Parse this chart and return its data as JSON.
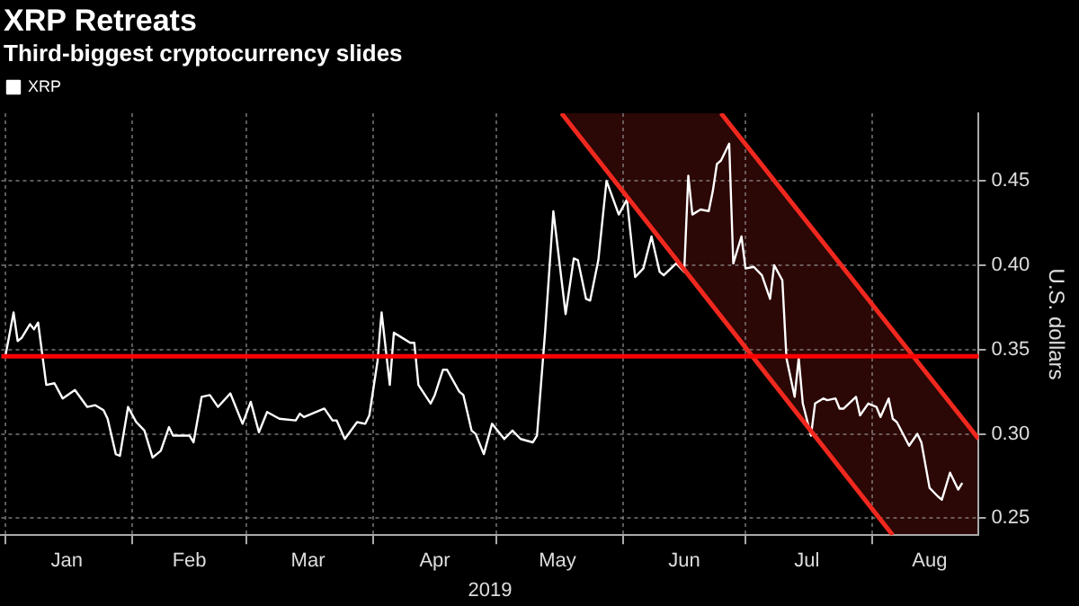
{
  "chart_data": {
    "type": "line",
    "title": "XRP Retreats",
    "subtitle": "Third-biggest cryptocurrency slides",
    "xlabel": "2019",
    "ylabel": "U.S. dollars",
    "xlim": [
      "2018-12-31",
      "2019-08-27"
    ],
    "xticks": [
      {
        "value": "2019-01-01",
        "label": null
      },
      {
        "value": "2019-01-16",
        "label": "Jan"
      },
      {
        "value": "2019-02-01",
        "label": null
      },
      {
        "value": "2019-02-15",
        "label": "Feb"
      },
      {
        "value": "2019-03-01",
        "label": null
      },
      {
        "value": "2019-03-16",
        "label": "Mar"
      },
      {
        "value": "2019-04-01",
        "label": null
      },
      {
        "value": "2019-04-16",
        "label": "Apr"
      },
      {
        "value": "2019-05-01",
        "label": null
      },
      {
        "value": "2019-05-16",
        "label": "May"
      },
      {
        "value": "2019-06-01",
        "label": null
      },
      {
        "value": "2019-06-16",
        "label": "Jun"
      },
      {
        "value": "2019-07-01",
        "label": null
      },
      {
        "value": "2019-07-16",
        "label": "Jul"
      },
      {
        "value": "2019-08-01",
        "label": null
      },
      {
        "value": "2019-08-15",
        "label": "Aug"
      }
    ],
    "ylim": [
      0.24,
      0.49
    ],
    "yticks": [
      {
        "value": 0.25,
        "label": "0.25"
      },
      {
        "value": 0.3,
        "label": "0.30"
      },
      {
        "value": 0.35,
        "label": "0.35"
      },
      {
        "value": 0.4,
        "label": "0.40"
      },
      {
        "value": 0.45,
        "label": "0.45"
      }
    ],
    "grid": true,
    "legend": "top left",
    "ref_lines": [
      {
        "axis": "y",
        "value": 0.346,
        "color": "#ff0000"
      }
    ],
    "series": [
      {
        "color": "#f0281e",
        "x": [
          "2019-05-17",
          "2019-08-06"
        ],
        "values": [
          0.49,
          0.24
        ]
      },
      {
        "color": "#f0281e",
        "x": [
          "2019-06-25",
          "2019-08-27"
        ],
        "values": [
          0.49,
          0.297
        ]
      },
      {
        "name": "XRP",
        "color": "#ffffff",
        "x": [
          "2019-01-01",
          "2019-01-03",
          "2019-01-04",
          "2019-01-05",
          "2019-01-07",
          "2019-01-08",
          "2019-01-09",
          "2019-01-11",
          "2019-01-13",
          "2019-01-15",
          "2019-01-18",
          "2019-01-21",
          "2019-01-23",
          "2019-01-25",
          "2019-01-26",
          "2019-01-28",
          "2019-01-29",
          "2019-01-31",
          "2019-02-02",
          "2019-02-04",
          "2019-02-06",
          "2019-02-08",
          "2019-02-10",
          "2019-02-11",
          "2019-02-13",
          "2019-02-15",
          "2019-02-16",
          "2019-02-18",
          "2019-02-20",
          "2019-02-22",
          "2019-02-25",
          "2019-02-28",
          "2019-03-02",
          "2019-03-04",
          "2019-03-06",
          "2019-03-09",
          "2019-03-13",
          "2019-03-14",
          "2019-03-15",
          "2019-03-18",
          "2019-03-20",
          "2019-03-22",
          "2019-03-23",
          "2019-03-25",
          "2019-03-28",
          "2019-03-30",
          "2019-03-31",
          "2019-04-02",
          "2019-04-03",
          "2019-04-05",
          "2019-04-06",
          "2019-04-08",
          "2019-04-10",
          "2019-04-11",
          "2019-04-12",
          "2019-04-15",
          "2019-04-16",
          "2019-04-18",
          "2019-04-19",
          "2019-04-22",
          "2019-04-23",
          "2019-04-25",
          "2019-04-26",
          "2019-04-28",
          "2019-04-30",
          "2019-05-03",
          "2019-05-05",
          "2019-05-07",
          "2019-05-10",
          "2019-05-11",
          "2019-05-13",
          "2019-05-15",
          "2019-05-18",
          "2019-05-20",
          "2019-05-21",
          "2019-05-23",
          "2019-05-24",
          "2019-05-26",
          "2019-05-28",
          "2019-05-31",
          "2019-06-02",
          "2019-06-04",
          "2019-06-06",
          "2019-06-08",
          "2019-06-10",
          "2019-06-11",
          "2019-06-14",
          "2019-06-16",
          "2019-06-17",
          "2019-06-18",
          "2019-06-20",
          "2019-06-22",
          "2019-06-23",
          "2019-06-24",
          "2019-06-25",
          "2019-06-27",
          "2019-06-28",
          "2019-06-30",
          "2019-07-01",
          "2019-07-03",
          "2019-07-05",
          "2019-07-07",
          "2019-07-08",
          "2019-07-10",
          "2019-07-11",
          "2019-07-13",
          "2019-07-14",
          "2019-07-15",
          "2019-07-17",
          "2019-07-18",
          "2019-07-20",
          "2019-07-21",
          "2019-07-23",
          "2019-07-24",
          "2019-07-25",
          "2019-07-28",
          "2019-07-29",
          "2019-07-31",
          "2019-08-02",
          "2019-08-03",
          "2019-08-05",
          "2019-08-06",
          "2019-08-07",
          "2019-08-10",
          "2019-08-12",
          "2019-08-13",
          "2019-08-15",
          "2019-08-17",
          "2019-08-18",
          "2019-08-20",
          "2019-08-22",
          "2019-08-23"
        ],
        "values": [
          0.346,
          0.372,
          0.355,
          0.357,
          0.365,
          0.362,
          0.366,
          0.329,
          0.33,
          0.321,
          0.326,
          0.316,
          0.317,
          0.314,
          0.309,
          0.288,
          0.287,
          0.316,
          0.307,
          0.302,
          0.286,
          0.29,
          0.304,
          0.299,
          0.299,
          0.299,
          0.295,
          0.322,
          0.323,
          0.316,
          0.324,
          0.306,
          0.319,
          0.301,
          0.313,
          0.309,
          0.308,
          0.312,
          0.31,
          0.313,
          0.315,
          0.308,
          0.308,
          0.297,
          0.307,
          0.306,
          0.311,
          0.343,
          0.372,
          0.329,
          0.36,
          0.357,
          0.354,
          0.354,
          0.329,
          0.318,
          0.323,
          0.338,
          0.338,
          0.325,
          0.323,
          0.302,
          0.3,
          0.288,
          0.306,
          0.297,
          0.302,
          0.297,
          0.295,
          0.299,
          0.361,
          0.432,
          0.371,
          0.404,
          0.403,
          0.38,
          0.379,
          0.403,
          0.45,
          0.43,
          0.439,
          0.393,
          0.398,
          0.417,
          0.396,
          0.394,
          0.401,
          0.396,
          0.453,
          0.43,
          0.433,
          0.432,
          0.444,
          0.46,
          0.462,
          0.472,
          0.401,
          0.417,
          0.398,
          0.399,
          0.394,
          0.38,
          0.4,
          0.391,
          0.345,
          0.322,
          0.345,
          0.318,
          0.299,
          0.318,
          0.321,
          0.32,
          0.321,
          0.315,
          0.315,
          0.322,
          0.311,
          0.318,
          0.316,
          0.31,
          0.321,
          0.309,
          0.307,
          0.293,
          0.3,
          0.295,
          0.268,
          0.263,
          0.261,
          0.277,
          0.267,
          0.271
        ]
      }
    ]
  }
}
